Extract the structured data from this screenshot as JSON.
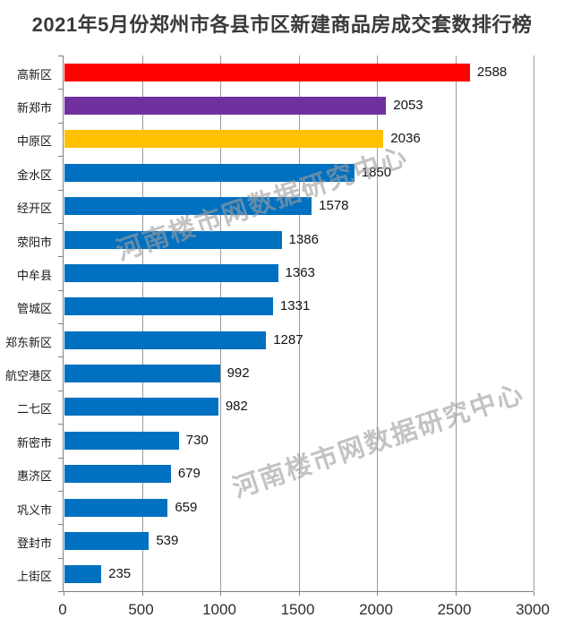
{
  "chart_data": {
    "type": "bar",
    "orientation": "horizontal",
    "title": "2021年5月份郑州市各县市区新建商品房成交套数排行榜",
    "categories": [
      "高新区",
      "新郑市",
      "中原区",
      "金水区",
      "经开区",
      "荥阳市",
      "中牟县",
      "管城区",
      "郑东新区",
      "航空港区",
      "二七区",
      "新密市",
      "惠济区",
      "巩义市",
      "登封市",
      "上街区"
    ],
    "values": [
      2588,
      2053,
      2036,
      1850,
      1578,
      1386,
      1363,
      1331,
      1287,
      992,
      982,
      730,
      679,
      659,
      539,
      235
    ],
    "bar_colors": [
      "#FF0000",
      "#7030A0",
      "#FFC000",
      "#0070C0",
      "#0070C0",
      "#0070C0",
      "#0070C0",
      "#0070C0",
      "#0070C0",
      "#0070C0",
      "#0070C0",
      "#0070C0",
      "#0070C0",
      "#0070C0",
      "#0070C0",
      "#0070C0"
    ],
    "xlim": [
      0,
      3000
    ],
    "x_ticks": [
      0,
      500,
      1000,
      1500,
      2000,
      2500,
      3000
    ],
    "grid": true,
    "grid_color": "#9b9b9b",
    "axis_color": "#808080",
    "value_labels_shown": true,
    "legend": "none",
    "xlabel": "",
    "ylabel": ""
  },
  "watermark": {
    "text": "河南楼市网数据研究中心"
  }
}
